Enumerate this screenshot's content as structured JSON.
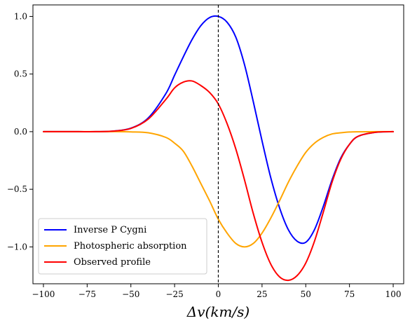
{
  "chart_data": {
    "type": "line",
    "title": "",
    "xlabel": "Δv(km/s)",
    "ylabel": "",
    "xlim": [
      -106,
      106
    ],
    "ylim": [
      -1.32,
      1.1
    ],
    "x_ticks": [
      -100,
      -75,
      -50,
      -25,
      0,
      25,
      50,
      75,
      100
    ],
    "x_tick_labels": [
      "−100",
      "−75",
      "−50",
      "−25",
      "0",
      "25",
      "50",
      "75",
      "100"
    ],
    "y_ticks": [
      1.0,
      0.5,
      0.0,
      -0.5,
      -1.0
    ],
    "y_tick_labels": [
      "1.0",
      "0.5",
      "0.0",
      "−0.5",
      "−1.0"
    ],
    "grid": false,
    "legend_position": "lower-left",
    "vertical_line": {
      "x": 0,
      "style": "dashed",
      "color": "#000000"
    },
    "x": [
      -100,
      -90,
      -80,
      -70,
      -60,
      -50,
      -40,
      -30,
      -25,
      -20,
      -15,
      -10,
      -5,
      0,
      5,
      10,
      15,
      20,
      25,
      30,
      35,
      40,
      45,
      50,
      55,
      60,
      65,
      70,
      75,
      80,
      90,
      100
    ],
    "series": [
      {
        "name": "Inverse P Cygni",
        "color": "#0000ff",
        "values": [
          0.0,
          0.0,
          0.0,
          0.0,
          0.005,
          0.03,
          0.12,
          0.33,
          0.49,
          0.65,
          0.8,
          0.92,
          0.99,
          1.0,
          0.95,
          0.82,
          0.58,
          0.26,
          -0.08,
          -0.4,
          -0.66,
          -0.85,
          -0.95,
          -0.96,
          -0.85,
          -0.65,
          -0.42,
          -0.23,
          -0.11,
          -0.04,
          -0.005,
          0.0
        ]
      },
      {
        "name": "Photospheric absorption",
        "color": "#ffa500",
        "values": [
          0.0,
          0.0,
          0.0,
          0.0,
          0.0,
          -0.002,
          -0.01,
          -0.05,
          -0.1,
          -0.17,
          -0.3,
          -0.45,
          -0.6,
          -0.76,
          -0.88,
          -0.97,
          -1.0,
          -0.97,
          -0.88,
          -0.75,
          -0.6,
          -0.44,
          -0.3,
          -0.18,
          -0.1,
          -0.05,
          -0.02,
          -0.01,
          -0.003,
          -0.001,
          0.0,
          0.0
        ]
      },
      {
        "name": "Observed profile",
        "color": "#ff0000",
        "values": [
          0.0,
          0.0,
          0.0,
          0.0,
          0.005,
          0.028,
          0.11,
          0.28,
          0.38,
          0.43,
          0.44,
          0.4,
          0.34,
          0.24,
          0.07,
          -0.15,
          -0.42,
          -0.71,
          -0.96,
          -1.15,
          -1.26,
          -1.29,
          -1.25,
          -1.14,
          -0.95,
          -0.7,
          -0.44,
          -0.24,
          -0.11,
          -0.04,
          -0.005,
          0.0
        ]
      }
    ]
  }
}
